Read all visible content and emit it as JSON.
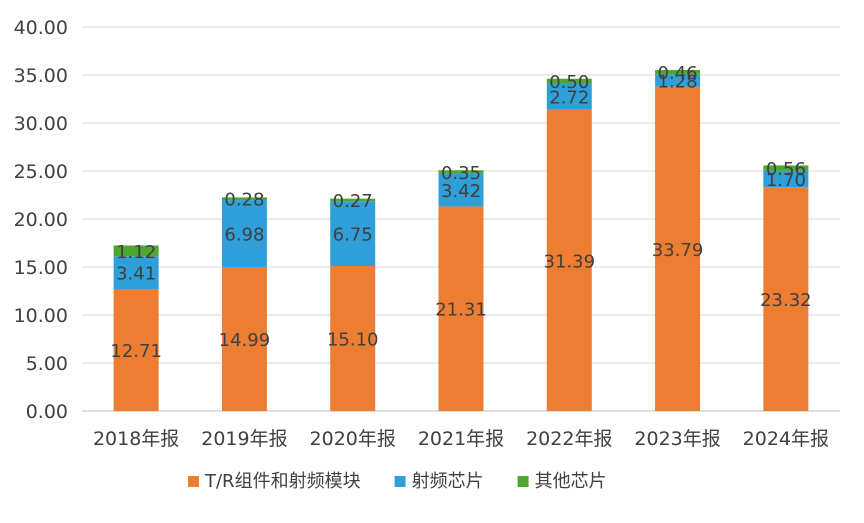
{
  "chart_data": {
    "type": "bar",
    "stacked": true,
    "categories": [
      "2018年报",
      "2019年报",
      "2020年报",
      "2021年报",
      "2022年报",
      "2023年报",
      "2024年报"
    ],
    "series": [
      {
        "name": "T/R组件和射频模块",
        "color": "#ed7d31",
        "values": [
          12.71,
          14.99,
          15.1,
          21.31,
          31.39,
          33.79,
          23.32
        ]
      },
      {
        "name": "射频芯片",
        "color": "#2e9fd8",
        "values": [
          3.41,
          6.98,
          6.75,
          3.42,
          2.72,
          1.28,
          1.7
        ]
      },
      {
        "name": "其他芯片",
        "color": "#4ea72e",
        "values": [
          1.12,
          0.28,
          0.27,
          0.35,
          0.5,
          0.46,
          0.56
        ]
      }
    ],
    "ylim": [
      0,
      40
    ],
    "yticks": [
      "0.00",
      "5.00",
      "10.00",
      "15.00",
      "20.00",
      "25.00",
      "30.00",
      "35.00",
      "40.00"
    ],
    "grid": true,
    "legend": "bottom",
    "title": "",
    "xlabel": "",
    "ylabel": ""
  }
}
